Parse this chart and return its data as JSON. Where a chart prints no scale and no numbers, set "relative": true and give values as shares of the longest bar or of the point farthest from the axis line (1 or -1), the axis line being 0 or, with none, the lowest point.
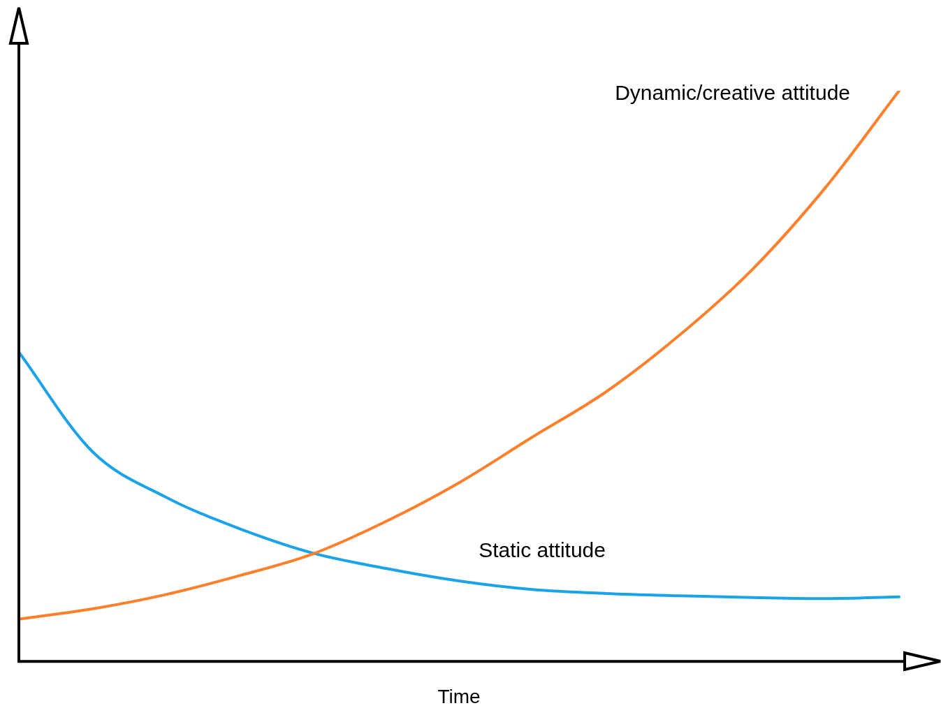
{
  "chart_data": {
    "type": "line",
    "relative": true,
    "xlabel": "Time",
    "categories": [
      null,
      null,
      null,
      null,
      null,
      null,
      null,
      null,
      null,
      null,
      null,
      null,
      null
    ],
    "series": [
      {
        "name": "Dynamic/creative attitude",
        "color": "#ff7f2a",
        "values": [
          0.074,
          0.092,
          0.117,
          0.15,
          0.188,
          0.245,
          0.313,
          0.393,
          0.472,
          0.571,
          0.687,
          0.831,
          1
        ]
      },
      {
        "name": "Static attitude",
        "color": "#1aa3e8",
        "values": [
          0.542,
          0.368,
          0.288,
          0.233,
          0.19,
          0.163,
          0.141,
          0.126,
          0.119,
          0.115,
          0.112,
          0.11,
          0.113
        ]
      }
    ],
    "grid": false,
    "legend": false,
    "marker": "none",
    "line_style": "solid"
  }
}
